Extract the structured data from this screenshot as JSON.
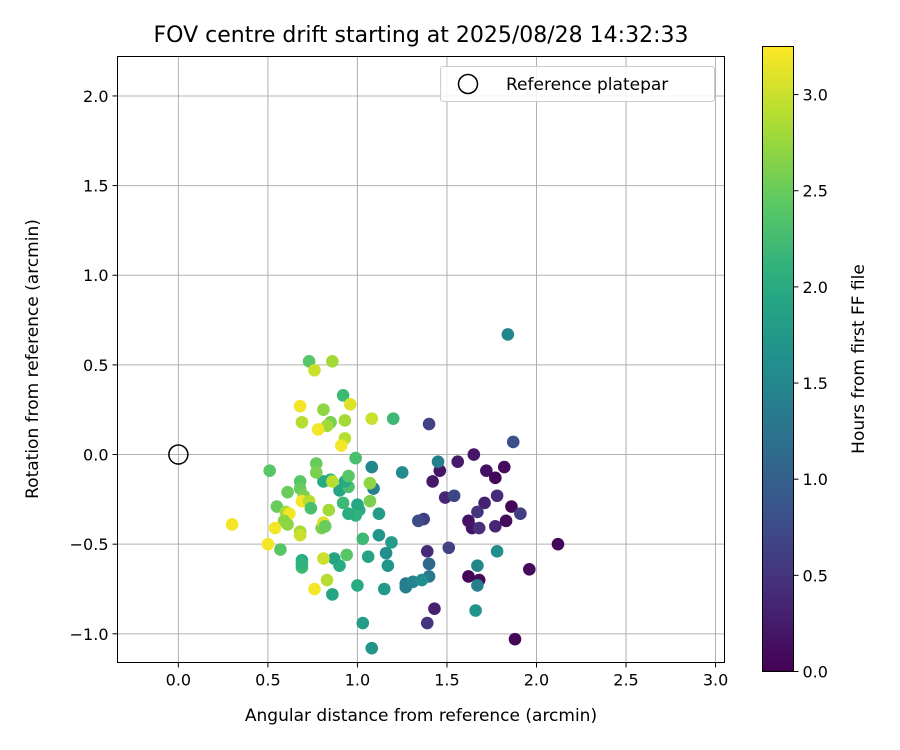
{
  "chart_data": {
    "type": "scatter",
    "title": "FOV centre drift starting at 2025/08/28 14:32:33",
    "xlabel": "Angular distance from reference (arcmin)",
    "ylabel": "Rotation from reference (arcmin)",
    "xlim": [
      -0.34,
      3.05
    ],
    "ylim": [
      -1.16,
      2.22
    ],
    "x_ticks": [
      0.0,
      0.5,
      1.0,
      1.5,
      2.0,
      2.5,
      3.0
    ],
    "x_tick_labels": [
      "0.0",
      "0.5",
      "1.0",
      "1.5",
      "2.0",
      "2.5",
      "3.0"
    ],
    "y_ticks": [
      -1.0,
      -0.5,
      0.0,
      0.5,
      1.0,
      1.5,
      2.0
    ],
    "y_tick_labels": [
      "−1.0",
      "−0.5",
      "0.0",
      "0.5",
      "1.0",
      "1.5",
      "2.0"
    ],
    "grid": true,
    "legend": {
      "placement": "top-right",
      "entries": [
        {
          "label": "Reference platepar",
          "marker": "open-circle"
        }
      ]
    },
    "reference_point": {
      "x": 0.0,
      "y": 0.0
    },
    "colorbar": {
      "label": "Hours from first FF file",
      "colormap": "viridis",
      "range": [
        0.0,
        3.25
      ],
      "ticks": [
        0.0,
        0.5,
        1.0,
        1.5,
        2.0,
        2.5,
        3.0
      ],
      "tick_labels": [
        "0.0",
        "0.5",
        "1.0",
        "1.5",
        "2.0",
        "2.5",
        "3.0"
      ]
    },
    "points": [
      {
        "x": 1.65,
        "y": 0.0,
        "h": 0.2
      },
      {
        "x": 1.72,
        "y": -0.09,
        "h": 0.15
      },
      {
        "x": 1.82,
        "y": -0.07,
        "h": 0.1
      },
      {
        "x": 1.56,
        "y": -0.04,
        "h": 0.25
      },
      {
        "x": 1.46,
        "y": -0.09,
        "h": 0.2
      },
      {
        "x": 1.77,
        "y": -0.13,
        "h": 0.05
      },
      {
        "x": 1.42,
        "y": -0.15,
        "h": 0.22
      },
      {
        "x": 1.49,
        "y": -0.24,
        "h": 0.35
      },
      {
        "x": 1.54,
        "y": -0.23,
        "h": 0.7
      },
      {
        "x": 1.71,
        "y": -0.27,
        "h": 0.3
      },
      {
        "x": 1.67,
        "y": -0.32,
        "h": 0.5
      },
      {
        "x": 1.62,
        "y": -0.37,
        "h": 0.15
      },
      {
        "x": 1.64,
        "y": -0.41,
        "h": 0.2
      },
      {
        "x": 1.68,
        "y": -0.41,
        "h": 0.45
      },
      {
        "x": 1.77,
        "y": -0.4,
        "h": 0.35
      },
      {
        "x": 1.83,
        "y": -0.37,
        "h": 0.1
      },
      {
        "x": 1.86,
        "y": -0.29,
        "h": 0.05
      },
      {
        "x": 1.91,
        "y": -0.33,
        "h": 0.6
      },
      {
        "x": 1.78,
        "y": -0.23,
        "h": 0.4
      },
      {
        "x": 1.87,
        "y": 0.07,
        "h": 0.8
      },
      {
        "x": 1.4,
        "y": 0.17,
        "h": 0.65
      },
      {
        "x": 1.37,
        "y": -0.36,
        "h": 0.6
      },
      {
        "x": 1.34,
        "y": -0.37,
        "h": 0.75
      },
      {
        "x": 1.51,
        "y": -0.52,
        "h": 0.65
      },
      {
        "x": 1.39,
        "y": -0.54,
        "h": 0.4
      },
      {
        "x": 1.4,
        "y": -0.61,
        "h": 1.1
      },
      {
        "x": 1.4,
        "y": -0.68,
        "h": 1.3
      },
      {
        "x": 1.43,
        "y": -0.86,
        "h": 0.3
      },
      {
        "x": 1.39,
        "y": -0.94,
        "h": 0.5
      },
      {
        "x": 1.62,
        "y": -0.68,
        "h": 0.05
      },
      {
        "x": 1.68,
        "y": -0.7,
        "h": 0.1
      },
      {
        "x": 1.67,
        "y": -0.73,
        "h": 1.4
      },
      {
        "x": 1.67,
        "y": -0.62,
        "h": 1.5
      },
      {
        "x": 1.78,
        "y": -0.54,
        "h": 1.6
      },
      {
        "x": 1.66,
        "y": -0.87,
        "h": 1.7
      },
      {
        "x": 1.96,
        "y": -0.64,
        "h": 0.1
      },
      {
        "x": 2.12,
        "y": -0.5,
        "h": 0.05
      },
      {
        "x": 1.88,
        "y": -1.03,
        "h": 0.05
      },
      {
        "x": 1.84,
        "y": 0.67,
        "h": 1.5
      },
      {
        "x": 1.45,
        "y": -0.04,
        "h": 1.4
      },
      {
        "x": 1.25,
        "y": -0.1,
        "h": 1.55
      },
      {
        "x": 1.08,
        "y": -0.07,
        "h": 1.5
      },
      {
        "x": 1.09,
        "y": -0.19,
        "h": 1.4
      },
      {
        "x": 1.27,
        "y": -0.72,
        "h": 1.3
      },
      {
        "x": 1.27,
        "y": -0.74,
        "h": 1.4
      },
      {
        "x": 1.31,
        "y": -0.71,
        "h": 1.5
      },
      {
        "x": 1.36,
        "y": -0.7,
        "h": 1.6
      },
      {
        "x": 1.16,
        "y": -0.55,
        "h": 1.6
      },
      {
        "x": 1.17,
        "y": -0.62,
        "h": 1.7
      },
      {
        "x": 1.19,
        "y": -0.49,
        "h": 1.8
      },
      {
        "x": 1.12,
        "y": -0.45,
        "h": 1.7
      },
      {
        "x": 1.12,
        "y": -0.33,
        "h": 1.8
      },
      {
        "x": 1.06,
        "y": -0.57,
        "h": 1.9
      },
      {
        "x": 1.15,
        "y": -0.75,
        "h": 1.75
      },
      {
        "x": 1.0,
        "y": -0.73,
        "h": 2.0
      },
      {
        "x": 1.03,
        "y": -0.94,
        "h": 1.8
      },
      {
        "x": 1.08,
        "y": -1.08,
        "h": 1.7
      },
      {
        "x": 0.86,
        "y": -0.78,
        "h": 1.9
      },
      {
        "x": 0.9,
        "y": -0.62,
        "h": 2.0
      },
      {
        "x": 0.87,
        "y": -0.58,
        "h": 1.9
      },
      {
        "x": 0.94,
        "y": -0.56,
        "h": 2.4
      },
      {
        "x": 1.03,
        "y": -0.47,
        "h": 2.2
      },
      {
        "x": 1.01,
        "y": -0.31,
        "h": 2.0
      },
      {
        "x": 1.0,
        "y": -0.28,
        "h": 1.95
      },
      {
        "x": 0.99,
        "y": -0.34,
        "h": 2.1
      },
      {
        "x": 0.95,
        "y": -0.33,
        "h": 2.05
      },
      {
        "x": 0.92,
        "y": -0.27,
        "h": 2.2
      },
      {
        "x": 0.9,
        "y": -0.2,
        "h": 1.9
      },
      {
        "x": 0.95,
        "y": -0.18,
        "h": 2.3
      },
      {
        "x": 0.93,
        "y": -0.15,
        "h": 2.0
      },
      {
        "x": 0.85,
        "y": -0.14,
        "h": 2.1
      },
      {
        "x": 0.81,
        "y": -0.15,
        "h": 2.0
      },
      {
        "x": 0.95,
        "y": -0.12,
        "h": 2.4
      },
      {
        "x": 0.99,
        "y": -0.02,
        "h": 2.3
      },
      {
        "x": 1.2,
        "y": 0.2,
        "h": 2.2
      },
      {
        "x": 0.92,
        "y": 0.33,
        "h": 2.2
      },
      {
        "x": 0.73,
        "y": 0.52,
        "h": 2.4
      },
      {
        "x": 0.86,
        "y": 0.52,
        "h": 2.8
      },
      {
        "x": 0.76,
        "y": 0.47,
        "h": 3.0
      },
      {
        "x": 0.81,
        "y": 0.25,
        "h": 2.7
      },
      {
        "x": 0.85,
        "y": 0.18,
        "h": 2.6
      },
      {
        "x": 0.83,
        "y": 0.16,
        "h": 2.8
      },
      {
        "x": 0.78,
        "y": 0.14,
        "h": 3.2
      },
      {
        "x": 0.68,
        "y": 0.27,
        "h": 3.2
      },
      {
        "x": 0.69,
        "y": 0.18,
        "h": 2.9
      },
      {
        "x": 0.93,
        "y": 0.19,
        "h": 2.8
      },
      {
        "x": 0.96,
        "y": 0.28,
        "h": 3.1
      },
      {
        "x": 0.93,
        "y": 0.09,
        "h": 2.9
      },
      {
        "x": 0.91,
        "y": 0.05,
        "h": 3.2
      },
      {
        "x": 1.08,
        "y": 0.2,
        "h": 3.0
      },
      {
        "x": 0.77,
        "y": -0.05,
        "h": 2.5
      },
      {
        "x": 0.77,
        "y": -0.1,
        "h": 2.6
      },
      {
        "x": 0.51,
        "y": -0.09,
        "h": 2.4
      },
      {
        "x": 0.68,
        "y": -0.15,
        "h": 2.4
      },
      {
        "x": 0.68,
        "y": -0.19,
        "h": 2.5
      },
      {
        "x": 0.7,
        "y": -0.23,
        "h": 2.6
      },
      {
        "x": 0.69,
        "y": -0.26,
        "h": 3.2
      },
      {
        "x": 0.73,
        "y": -0.26,
        "h": 2.9
      },
      {
        "x": 0.61,
        "y": -0.21,
        "h": 2.5
      },
      {
        "x": 0.55,
        "y": -0.29,
        "h": 2.5
      },
      {
        "x": 0.6,
        "y": -0.32,
        "h": 2.8
      },
      {
        "x": 0.62,
        "y": -0.33,
        "h": 3.2
      },
      {
        "x": 0.59,
        "y": -0.37,
        "h": 2.7
      },
      {
        "x": 0.61,
        "y": -0.39,
        "h": 2.7
      },
      {
        "x": 0.54,
        "y": -0.41,
        "h": 3.2
      },
      {
        "x": 0.3,
        "y": -0.39,
        "h": 3.2
      },
      {
        "x": 0.5,
        "y": -0.5,
        "h": 3.2
      },
      {
        "x": 0.57,
        "y": -0.53,
        "h": 2.4
      },
      {
        "x": 0.68,
        "y": -0.43,
        "h": 2.8
      },
      {
        "x": 0.68,
        "y": -0.45,
        "h": 3.0
      },
      {
        "x": 0.8,
        "y": -0.41,
        "h": 2.6
      },
      {
        "x": 0.81,
        "y": -0.38,
        "h": 3.1
      },
      {
        "x": 0.82,
        "y": -0.4,
        "h": 2.5
      },
      {
        "x": 0.84,
        "y": -0.31,
        "h": 2.8
      },
      {
        "x": 0.86,
        "y": -0.15,
        "h": 2.9
      },
      {
        "x": 0.74,
        "y": -0.3,
        "h": 2.3
      },
      {
        "x": 0.69,
        "y": -0.59,
        "h": 2.0
      },
      {
        "x": 0.69,
        "y": -0.63,
        "h": 2.2
      },
      {
        "x": 0.69,
        "y": -0.61,
        "h": 2.1
      },
      {
        "x": 0.81,
        "y": -0.58,
        "h": 3.0
      },
      {
        "x": 0.83,
        "y": -0.7,
        "h": 2.9
      },
      {
        "x": 0.76,
        "y": -0.75,
        "h": 3.2
      },
      {
        "x": 1.07,
        "y": -0.16,
        "h": 2.7
      },
      {
        "x": 1.07,
        "y": -0.26,
        "h": 2.6
      }
    ]
  }
}
